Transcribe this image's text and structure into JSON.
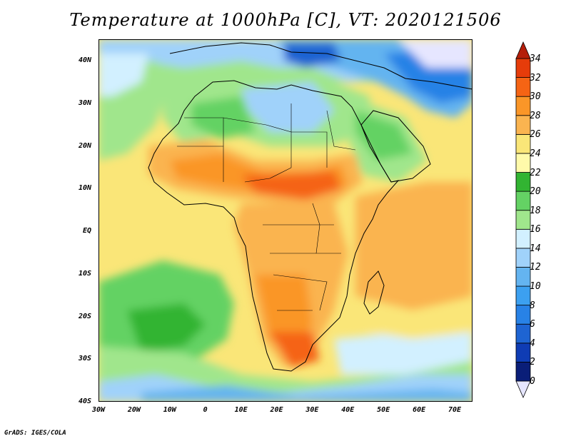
{
  "title": "Temperature at 1000hPa [C], VT: 2020121506",
  "credit": "GrADS: IGES/COLA",
  "map": {
    "projection": "lat-lon",
    "lon_range": [
      -30,
      75
    ],
    "lat_range": [
      -40,
      45
    ],
    "region": "Africa",
    "lat_ticks": [
      "40N",
      "30N",
      "20N",
      "10N",
      "EQ",
      "10S",
      "20S",
      "30S",
      "40S"
    ],
    "lon_ticks": [
      "30W",
      "20W",
      "10W",
      "0",
      "10E",
      "20E",
      "30E",
      "40E",
      "50E",
      "60E",
      "70E"
    ]
  },
  "colorbar": {
    "levels": [
      "0",
      "2",
      "4",
      "6",
      "8",
      "10",
      "12",
      "14",
      "16",
      "18",
      "20",
      "22",
      "24",
      "26",
      "28",
      "30",
      "32",
      "34"
    ],
    "colors": [
      "#e6e6ff",
      "#0a1e78",
      "#0f3cb4",
      "#1e64d2",
      "#2882e6",
      "#3ca0f0",
      "#64b4f0",
      "#a0d2fa",
      "#d2f0ff",
      "#a0e68c",
      "#64d264",
      "#32b432",
      "#fffaaa",
      "#fae678",
      "#fab450",
      "#fa9628",
      "#f56414",
      "#e63c0a",
      "#b41e0a"
    ]
  }
}
